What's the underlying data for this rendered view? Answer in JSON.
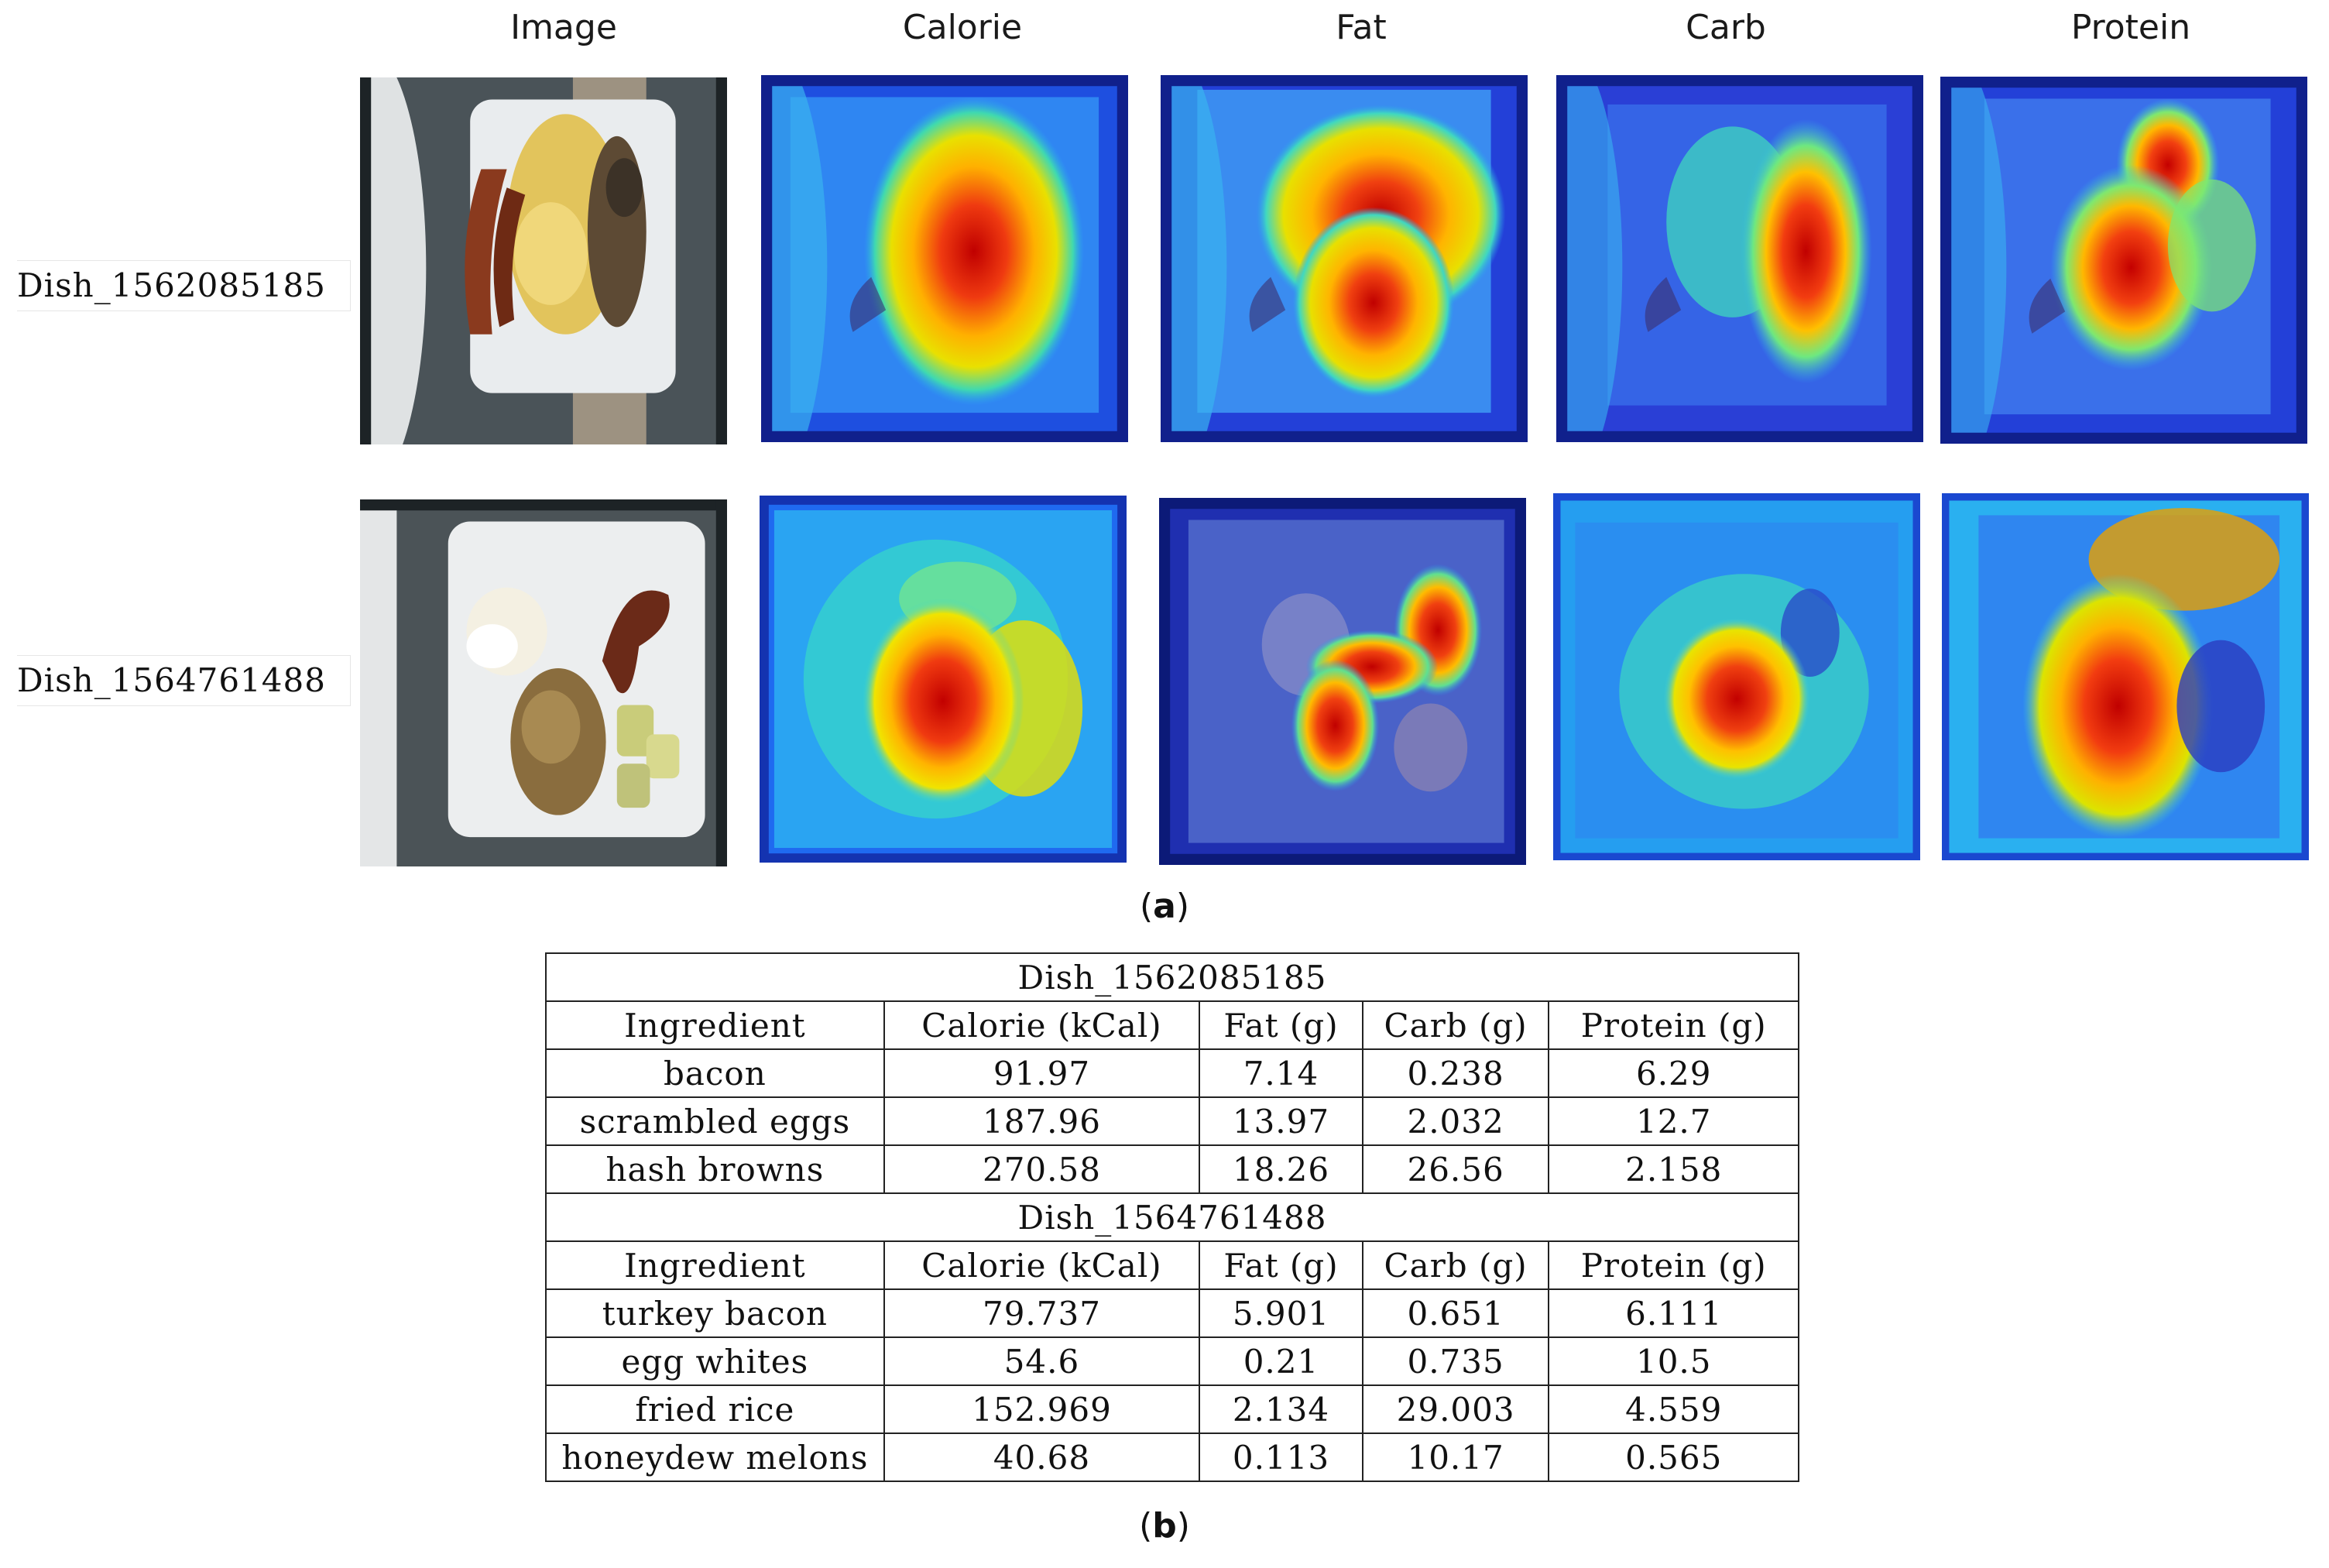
{
  "columns": [
    "Image",
    "Calorie",
    "Fat",
    "Carb",
    "Protein"
  ],
  "rows": [
    {
      "label": "Dish_1562085185"
    },
    {
      "label": "Dish_1564761488"
    }
  ],
  "captions": {
    "a": "a",
    "b": "b"
  },
  "table": {
    "headers": [
      "Ingredient",
      "Calorie (kCal)",
      "Fat (g)",
      "Carb (g)",
      "Protein (g)"
    ],
    "dishes": [
      {
        "title": "Dish_1562085185",
        "items": [
          [
            "bacon",
            "91.97",
            "7.14",
            "0.238",
            "6.29"
          ],
          [
            "scrambled eggs",
            "187.96",
            "13.97",
            "2.032",
            "12.7"
          ],
          [
            "hash browns",
            "270.58",
            "18.26",
            "26.56",
            "2.158"
          ]
        ]
      },
      {
        "title": "Dish_1564761488",
        "items": [
          [
            "turkey bacon",
            "79.737",
            "5.901",
            "0.651",
            "6.111"
          ],
          [
            "egg whites",
            "54.6",
            "0.21",
            "0.735",
            "10.5"
          ],
          [
            "fried rice",
            "152.969",
            "2.134",
            "29.003",
            "4.559"
          ],
          [
            "honeydew melons",
            "40.68",
            "0.113",
            "10.17",
            "0.565"
          ]
        ]
      }
    ]
  }
}
